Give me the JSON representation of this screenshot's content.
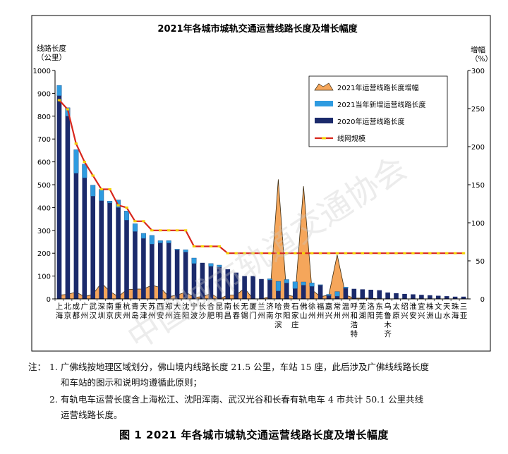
{
  "chart_data": {
    "type": "bar",
    "title": "2021年各城市城轨交通运营线路长度及增长幅度",
    "ylabel_left": [
      "线路长度",
      "（公里）"
    ],
    "ylabel_right": [
      "增幅",
      "（%）"
    ],
    "ylim_left": [
      0,
      1000
    ],
    "yticks_left": [
      0,
      100,
      200,
      300,
      400,
      500,
      600,
      700,
      800,
      900,
      1000
    ],
    "ylim_right": [
      0,
      300
    ],
    "yticks_right": [
      0,
      50,
      100,
      150,
      200,
      250,
      300
    ],
    "categories": [
      "上海",
      "北京",
      "成都",
      "广州",
      "武汉",
      "深圳",
      "南京",
      "重庆",
      "杭州",
      "青岛",
      "天津",
      "苏州",
      "西安",
      "郑州",
      "大连",
      "沈阳",
      "宁波",
      "长沙",
      "合肥",
      "昆明",
      "南昌",
      "长春",
      "无锡",
      "厦门",
      "兰州",
      "济南",
      "哈尔滨",
      "贵阳",
      "石家庄",
      "佛山",
      "徐州",
      "福州",
      "嘉兴",
      "常州",
      "温州",
      "呼和浩特",
      "芜湖",
      "洛阳",
      "东莞",
      "乌鲁木齐",
      "太原",
      "绍兴",
      "淮安",
      "宜兴",
      "株洲",
      "文山",
      "天水",
      "珠海",
      "三亚"
    ],
    "category_labels": [
      "上\n海",
      "北\n京",
      "成\n都",
      "广\n州",
      "武\n汉",
      "深\n圳",
      "南\n京",
      "重\n庆",
      "杭\n州",
      "青\n岛",
      "天\n津",
      "苏\n州",
      "西\n安",
      "郑\n州",
      "大\n连",
      "沈\n阳",
      "宁\n波",
      "长\n沙",
      "合\n肥",
      "昆\n明",
      "南\n昌",
      "长\n春",
      "无\n锡",
      "厦\n门",
      "兰\n州",
      "济\n南",
      "哈\n尔\n滨",
      "贵\n阳",
      "石\n家\n庄",
      "佛\n山",
      "徐\n州",
      "福\n州",
      "嘉\n兴",
      "常\n州",
      "温\n州",
      "呼\n和\n浩\n特",
      "芜\n湖",
      "洛\n阳",
      "东\n莞",
      "乌\n鲁\n木\n齐",
      "太\n原",
      "绍\n兴",
      "淮\n安",
      "宜\n兴",
      "株\n洲",
      "文\n山",
      "天\n水",
      "珠\n海",
      "三\n亚"
    ],
    "series": [
      {
        "name": "2021年运营线路长度增幅",
        "type": "area",
        "axis": "right",
        "color": "#F5A65B",
        "values": [
          5,
          6,
          9,
          3,
          6,
          21,
          10,
          3,
          12,
          13,
          13,
          18,
          15,
          3,
          5,
          9,
          2,
          3,
          7,
          0,
          5,
          5,
          14,
          0,
          0,
          3,
          157,
          5,
          3,
          148,
          12,
          3,
          5,
          58,
          5,
          1,
          1,
          1,
          0,
          0,
          0,
          0,
          0,
          0,
          0,
          0,
          0,
          0,
          0
        ]
      },
      {
        "name": "2021当年新增运营线路长度",
        "type": "bar",
        "axis": "left",
        "color": "#2E9BE0",
        "values": [
          45,
          37,
          103,
          60,
          48,
          50,
          8,
          33,
          40,
          34,
          22,
          38,
          10,
          10,
          3,
          10,
          24,
          0,
          12,
          8,
          0,
          0,
          0,
          0,
          0,
          5,
          42,
          15,
          30,
          14,
          15,
          2,
          5,
          20,
          5,
          0,
          0,
          0,
          0,
          0,
          0,
          0,
          0,
          0,
          0,
          0,
          0,
          0,
          0
        ]
      },
      {
        "name": "2020年运营线路长度",
        "type": "bar",
        "axis": "left",
        "color": "#1B2A6B",
        "values": [
          890,
          800,
          550,
          530,
          450,
          430,
          420,
          400,
          345,
          295,
          265,
          240,
          245,
          245,
          215,
          205,
          155,
          158,
          143,
          140,
          130,
          115,
          100,
          100,
          87,
          83,
          35,
          70,
          45,
          60,
          55,
          60,
          15,
          12,
          47,
          44,
          42,
          40,
          38,
          28,
          25,
          22,
          20,
          18,
          16,
          14,
          12,
          10,
          10
        ]
      },
      {
        "name": "线网规模",
        "type": "line",
        "axis": "left",
        "color": "#D8261C",
        "marker_color": "#F4D000",
        "values": [
          870,
          830,
          680,
          600,
          540,
          480,
          480,
          410,
          400,
          340,
          340,
          300,
          300,
          300,
          300,
          300,
          230,
          230,
          230,
          230,
          200,
          200,
          200,
          200,
          200,
          200,
          200,
          200,
          200,
          200,
          200,
          200,
          200,
          200,
          200,
          200,
          200,
          200,
          200,
          200,
          200,
          200,
          200,
          200,
          200,
          200,
          200,
          200,
          200
        ]
      }
    ],
    "legend_position": "top-right"
  },
  "notes": {
    "label": "注：",
    "n1a": "1. 广佛线按地理区域划分，佛山境内线路长度 21.5 公里，车站 15 座，此后涉及广佛线线路长度",
    "n1b": "和车站的图示和说明均遵循此原则；",
    "n2a": "2. 有轨电车运营长度含上海松江、沈阳浑南、武汉光谷和长春有轨电车 4 市共计 50.1 公里共线",
    "n2b": "运营线路长度。"
  },
  "caption": "图 1    2021 年各城市城轨交通运营线路长度及增长幅度",
  "watermark": "中国城市轨道交通协会"
}
